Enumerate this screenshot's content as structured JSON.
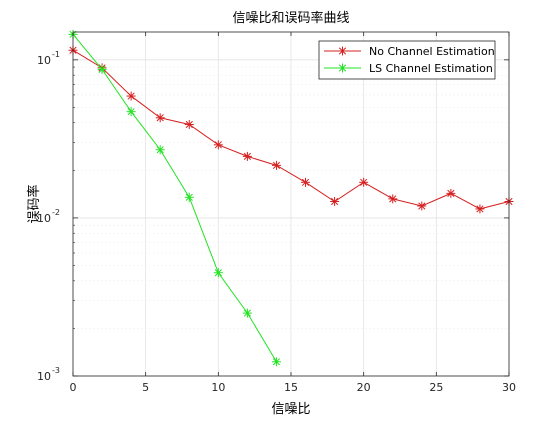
{
  "chart_data": {
    "type": "line",
    "title": "信噪比和误码率曲线",
    "xlabel": "信噪比",
    "ylabel": "误码率",
    "xlim": [
      0,
      30
    ],
    "ylim": [
      0.001,
      0.15
    ],
    "yscale": "log",
    "grid": true,
    "legend_position": "top-right",
    "x_ticks": [
      0,
      5,
      10,
      15,
      20,
      25,
      30
    ],
    "x_tick_labels": [
      "0",
      "5",
      "10",
      "15",
      "20",
      "25",
      "30"
    ],
    "y_ticks": [
      0.001,
      0.01,
      0.1
    ],
    "y_tick_labels": [
      {
        "base": "10",
        "exp": "-3"
      },
      {
        "base": "10",
        "exp": "-2"
      },
      {
        "base": "10",
        "exp": "-1"
      }
    ],
    "series": [
      {
        "name": "No Channel Estimation",
        "color": "#d62020",
        "marker": "asterisk",
        "x": [
          0,
          2,
          4,
          6,
          8,
          10,
          12,
          14,
          16,
          18,
          20,
          22,
          24,
          26,
          28,
          30
        ],
        "y": [
          0.115,
          0.089,
          0.059,
          0.043,
          0.039,
          0.029,
          0.0245,
          0.0215,
          0.0168,
          0.0127,
          0.0168,
          0.0132,
          0.0119,
          0.0143,
          0.0114,
          0.0127
        ]
      },
      {
        "name": "LS Channel Estimation",
        "color": "#22e322",
        "marker": "asterisk",
        "x": [
          0,
          2,
          4,
          6,
          8,
          10,
          12,
          14
        ],
        "y": [
          0.145,
          0.087,
          0.047,
          0.027,
          0.0135,
          0.0045,
          0.0025,
          0.00123
        ]
      }
    ]
  }
}
